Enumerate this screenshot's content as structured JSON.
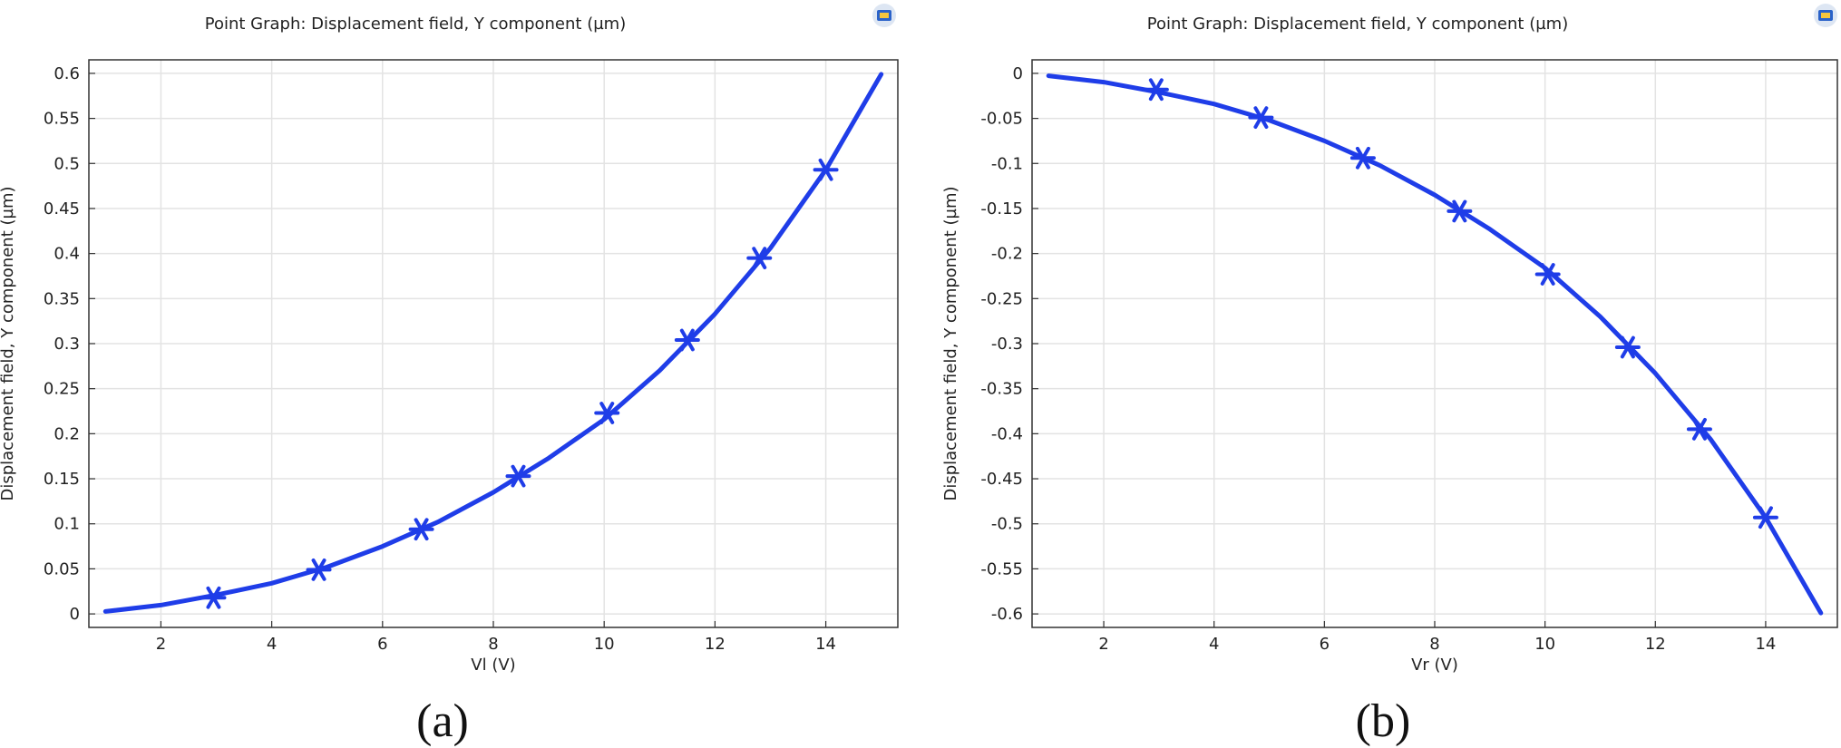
{
  "charts": [
    {
      "title": "Point Graph: Displacement field, Y component (µm)",
      "caption": "(a)",
      "chart_data": {
        "type": "line",
        "title": "Point Graph: Displacement field, Y component (µm)",
        "xlabel": "Vl (V)",
        "ylabel": "Displacement field, Y component (µm)",
        "xlim": [
          0.7,
          15.3
        ],
        "ylim": [
          -0.015,
          0.615
        ],
        "xticks": [
          2,
          4,
          6,
          8,
          10,
          12,
          14
        ],
        "yticks": [
          0,
          0.05,
          0.1,
          0.15,
          0.2,
          0.25,
          0.3,
          0.35,
          0.4,
          0.45,
          0.5,
          0.55,
          0.6
        ],
        "ytick_labels": [
          "0",
          "0.05",
          "0.1",
          "0.15",
          "0.2",
          "0.25",
          "0.3",
          "0.35",
          "0.4",
          "0.45",
          "0.5",
          "0.55",
          "0.6"
        ],
        "grid": true,
        "line_color": "#1f3de8",
        "series": [
          {
            "x": [
              1,
              2,
              3,
              4,
              5,
              6,
              7,
              8,
              9,
              10,
              11,
              12,
              13,
              14,
              15
            ],
            "y": [
              0.0027,
              0.0098,
              0.021,
              0.034,
              0.052,
              0.075,
              0.102,
              0.135,
              0.173,
              0.216,
              0.27,
              0.333,
              0.406,
              0.493,
              0.599
            ],
            "markers": {
              "x": [
                2.95,
                4.85,
                6.7,
                8.45,
                10.05,
                11.5,
                12.8,
                14.0
              ],
              "y": [
                0.018,
                0.049,
                0.094,
                0.153,
                0.223,
                0.304,
                0.395,
                0.493
              ]
            }
          }
        ]
      }
    },
    {
      "title": "Point Graph: Displacement field, Y component (µm)",
      "caption": "(b)",
      "chart_data": {
        "type": "line",
        "title": "Point Graph: Displacement field, Y component (µm)",
        "xlabel": "Vr (V)",
        "ylabel": "Displacement field, Y component (µm)",
        "xlim": [
          0.7,
          15.3
        ],
        "ylim": [
          -0.615,
          0.015
        ],
        "xticks": [
          2,
          4,
          6,
          8,
          10,
          12,
          14
        ],
        "yticks": [
          0,
          -0.05,
          -0.1,
          -0.15,
          -0.2,
          -0.25,
          -0.3,
          -0.35,
          -0.4,
          -0.45,
          -0.5,
          -0.55,
          -0.6
        ],
        "ytick_labels": [
          "0",
          "-0.05",
          "-0.1",
          "-0.15",
          "-0.2",
          "-0.25",
          "-0.3",
          "-0.35",
          "-0.4",
          "-0.45",
          "-0.5",
          "-0.55",
          "-0.6"
        ],
        "grid": true,
        "line_color": "#1f3de8",
        "series": [
          {
            "x": [
              1,
              2,
              3,
              4,
              5,
              6,
              7,
              8,
              9,
              10,
              11,
              12,
              13,
              14,
              15
            ],
            "y": [
              -0.0027,
              -0.0098,
              -0.021,
              -0.034,
              -0.052,
              -0.075,
              -0.102,
              -0.135,
              -0.173,
              -0.216,
              -0.27,
              -0.333,
              -0.406,
              -0.493,
              -0.599
            ],
            "markers": {
              "x": [
                2.95,
                4.85,
                6.7,
                8.45,
                10.05,
                11.5,
                12.8,
                14.0
              ],
              "y": [
                -0.018,
                -0.049,
                -0.094,
                -0.153,
                -0.223,
                -0.304,
                -0.395,
                -0.493
              ]
            }
          }
        ]
      }
    }
  ]
}
